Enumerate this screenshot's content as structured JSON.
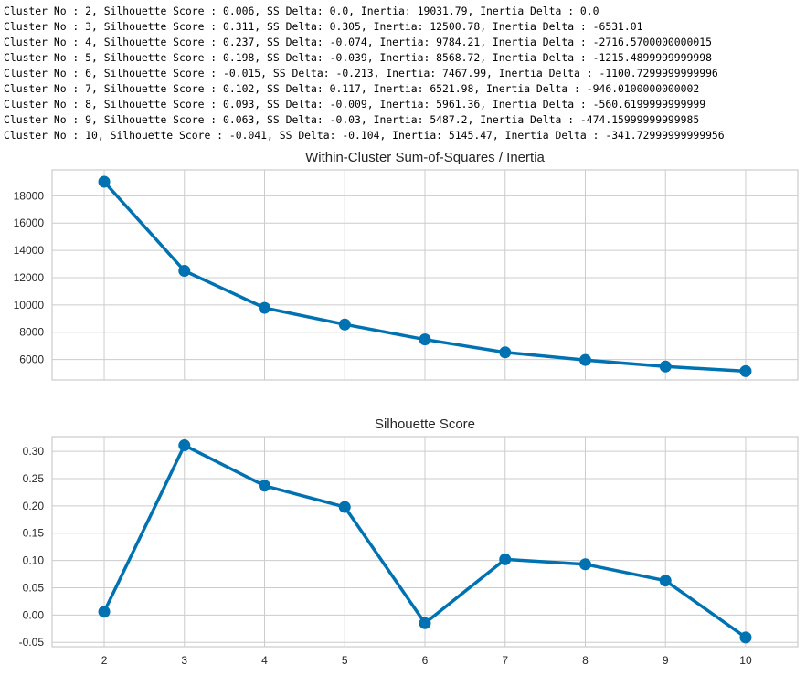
{
  "log_lines": [
    "Cluster No : 2, Silhouette Score : 0.006, SS Delta: 0.0, Inertia: 19031.79, Inertia Delta : 0.0",
    "Cluster No : 3, Silhouette Score : 0.311, SS Delta: 0.305, Inertia: 12500.78, Inertia Delta : -6531.01",
    "Cluster No : 4, Silhouette Score : 0.237, SS Delta: -0.074, Inertia: 9784.21, Inertia Delta : -2716.5700000000015",
    "Cluster No : 5, Silhouette Score : 0.198, SS Delta: -0.039, Inertia: 8568.72, Inertia Delta : -1215.4899999999998",
    "Cluster No : 6, Silhouette Score : -0.015, SS Delta: -0.213, Inertia: 7467.99, Inertia Delta : -1100.7299999999996",
    "Cluster No : 7, Silhouette Score : 0.102, SS Delta: 0.117, Inertia: 6521.98, Inertia Delta : -946.0100000000002",
    "Cluster No : 8, Silhouette Score : 0.093, SS Delta: -0.009, Inertia: 5961.36, Inertia Delta : -560.6199999999999",
    "Cluster No : 9, Silhouette Score : 0.063, SS Delta: -0.03, Inertia: 5487.2, Inertia Delta : -474.15999999999985",
    "Cluster No : 10, Silhouette Score : -0.041, SS Delta: -0.104, Inertia: 5145.47, Inertia Delta : -341.72999999999956"
  ],
  "chart_data": [
    {
      "type": "line",
      "title": "Within-Cluster Sum-of-Squares / Inertia",
      "x": [
        2,
        3,
        4,
        5,
        6,
        7,
        8,
        9,
        10
      ],
      "series": [
        {
          "values": [
            19031.79,
            12500.78,
            9784.21,
            8568.72,
            7467.99,
            6521.98,
            5961.36,
            5487.2,
            5145.47
          ]
        }
      ],
      "xlim": [
        1.35,
        10.65
      ],
      "ylim": [
        4500,
        19900
      ],
      "yticks": [
        6000,
        8000,
        10000,
        12000,
        14000,
        16000,
        18000
      ],
      "xticks": [
        2,
        3,
        4,
        5,
        6,
        7,
        8,
        9,
        10
      ],
      "grid": true,
      "color": "#0072b2"
    },
    {
      "type": "line",
      "title": "Silhouette Score",
      "x": [
        2,
        3,
        4,
        5,
        6,
        7,
        8,
        9,
        10
      ],
      "series": [
        {
          "values": [
            0.006,
            0.311,
            0.237,
            0.198,
            -0.015,
            0.102,
            0.093,
            0.063,
            -0.041
          ]
        }
      ],
      "xlim": [
        1.35,
        10.65
      ],
      "ylim": [
        -0.058,
        0.327
      ],
      "yticks": [
        -0.05,
        0.0,
        0.05,
        0.1,
        0.15,
        0.2,
        0.25,
        0.3
      ],
      "yticklabels": [
        "-0.05",
        "0.00",
        "0.05",
        "0.10",
        "0.15",
        "0.20",
        "0.25",
        "0.30"
      ],
      "xticks": [
        2,
        3,
        4,
        5,
        6,
        7,
        8,
        9,
        10
      ],
      "grid": true,
      "color": "#0072b2"
    }
  ]
}
